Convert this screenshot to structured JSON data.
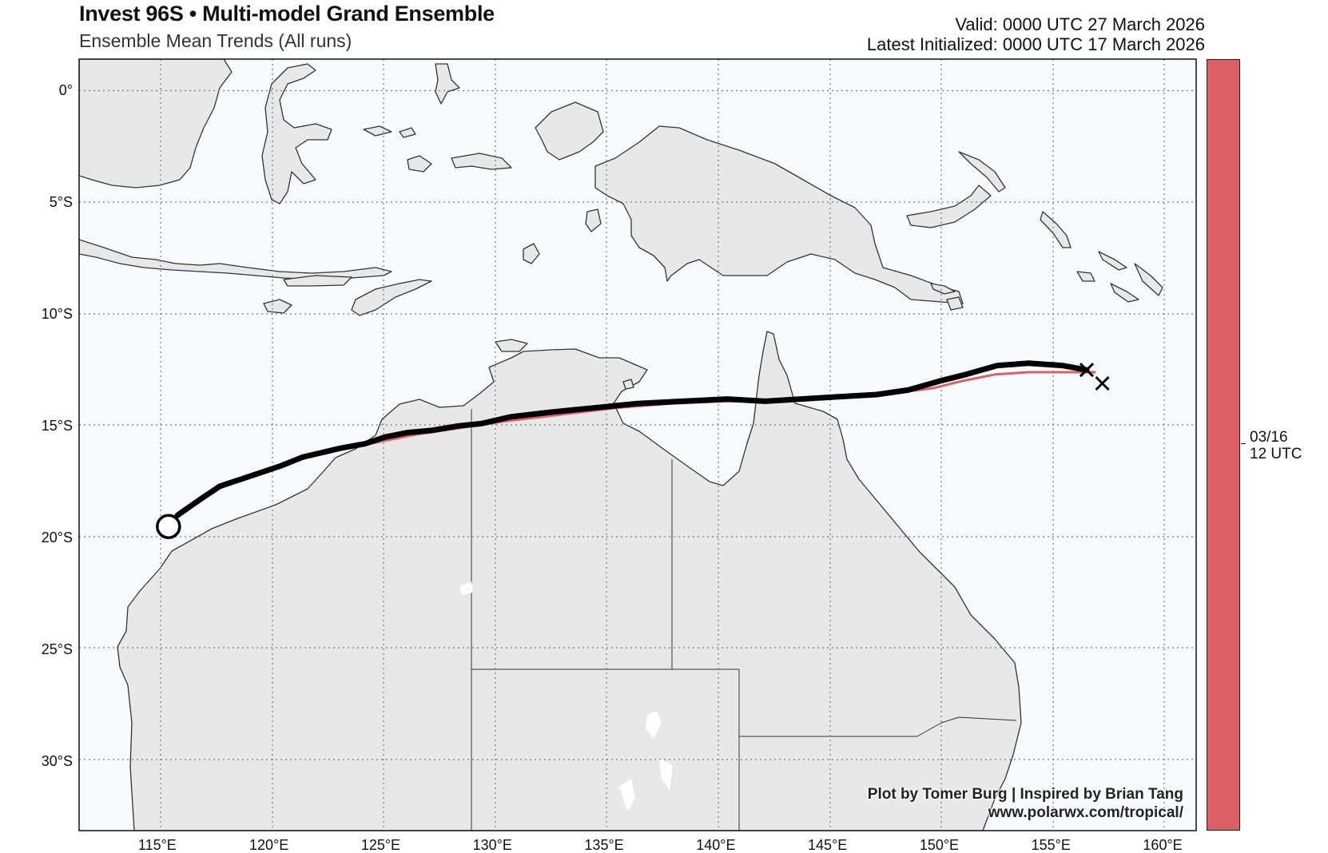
{
  "header": {
    "title": "Invest 96S • Multi-model Grand Ensemble",
    "subtitle": "Ensemble Mean Trends (All runs)",
    "valid": "Valid: 0000 UTC 27 March 2026",
    "initialized": "Latest Initialized: 0000 UTC 17 March 2026"
  },
  "map": {
    "extent": {
      "lon": [
        111.5,
        161.5
      ],
      "lat": [
        1.4,
        -33.1
      ]
    },
    "lat_labels": [
      {
        "lat": 0,
        "label": "0°"
      },
      {
        "lat": -5,
        "label": "5°S"
      },
      {
        "lat": -10,
        "label": "10°S"
      },
      {
        "lat": -15,
        "label": "15°S"
      },
      {
        "lat": -20,
        "label": "20°S"
      },
      {
        "lat": -25,
        "label": "25°S"
      },
      {
        "lat": -30,
        "label": "30°S"
      }
    ],
    "lon_labels": [
      {
        "lon": 115,
        "label": "115°E"
      },
      {
        "lon": 120,
        "label": "120°E"
      },
      {
        "lon": 125,
        "label": "125°E"
      },
      {
        "lon": 130,
        "label": "130°E"
      },
      {
        "lon": 135,
        "label": "135°E"
      },
      {
        "lon": 140,
        "label": "140°E"
      },
      {
        "lon": 145,
        "label": "145°E"
      },
      {
        "lon": 150,
        "label": "150°E"
      },
      {
        "lon": 155,
        "label": "155°E"
      },
      {
        "lon": 160,
        "label": "160°E"
      }
    ],
    "grid": true,
    "colors": {
      "ocean": "#f8fbfd",
      "land": "#e8e8e8",
      "coast": "#333333",
      "grid": "#777777"
    }
  },
  "tracks": {
    "mean_track": {
      "color": "#000000",
      "points": [
        [
          156.6,
          -12.5
        ],
        [
          155.5,
          -12.3
        ],
        [
          154,
          -12.2
        ],
        [
          152.6,
          -12.3
        ],
        [
          151.2,
          -12.7
        ],
        [
          150,
          -13
        ],
        [
          148.6,
          -13.4
        ],
        [
          147.2,
          -13.6
        ],
        [
          145.5,
          -13.7
        ],
        [
          143.8,
          -13.8
        ],
        [
          142.2,
          -13.9
        ],
        [
          140.5,
          -13.8
        ],
        [
          138.5,
          -13.9
        ],
        [
          136.5,
          -14
        ],
        [
          134.5,
          -14.2
        ],
        [
          132.5,
          -14.4
        ],
        [
          130.8,
          -14.6
        ],
        [
          129.5,
          -14.9
        ],
        [
          128.5,
          -15
        ],
        [
          127.3,
          -15.2
        ],
        [
          126.2,
          -15.3
        ],
        [
          125.2,
          -15.5
        ],
        [
          124.3,
          -15.8
        ],
        [
          123.2,
          -16
        ],
        [
          121.5,
          -16.4
        ],
        [
          120.5,
          -16.8
        ],
        [
          119.3,
          -17.2
        ],
        [
          117.8,
          -17.7
        ],
        [
          116.9,
          -18.3
        ],
        [
          115.9,
          -19
        ]
      ],
      "start_marker": "x-mark",
      "end_marker": "open-circle",
      "end_point": [
        115.5,
        -19.5
      ]
    },
    "member_track": {
      "color": "#dd5f66",
      "points": [
        [
          157,
          -12.6
        ],
        [
          155.5,
          -12.6
        ],
        [
          154,
          -12.6
        ],
        [
          152.5,
          -12.7
        ],
        [
          151,
          -13
        ],
        [
          149.8,
          -13.3
        ],
        [
          148.3,
          -13.5
        ],
        [
          146.5,
          -13.6
        ],
        [
          144.5,
          -13.8
        ],
        [
          142.5,
          -13.9
        ],
        [
          140.5,
          -13.9
        ],
        [
          138,
          -14
        ],
        [
          135.5,
          -14.2
        ],
        [
          133,
          -14.5
        ],
        [
          130.5,
          -14.8
        ],
        [
          128.5,
          -15.1
        ],
        [
          126.5,
          -15.4
        ],
        [
          125,
          -15.7
        ],
        [
          123.5,
          -16
        ],
        [
          122,
          -16.2
        ],
        [
          120.5,
          -16.8
        ],
        [
          119,
          -17.3
        ],
        [
          117.5,
          -17.9
        ],
        [
          116.4,
          -18.7
        ],
        [
          115.9,
          -19.1
        ]
      ],
      "end_marker": "x-mark",
      "end_point": [
        157.3,
        -13.1
      ]
    }
  },
  "colorbar": {
    "label_line1": "03/16",
    "label_line2": "12 UTC",
    "color": "#dd5f66"
  },
  "credits": {
    "line1": "Plot by Tomer Burg | Inspired by Brian Tang",
    "line2": "www.polarwx.com/tropical/"
  }
}
